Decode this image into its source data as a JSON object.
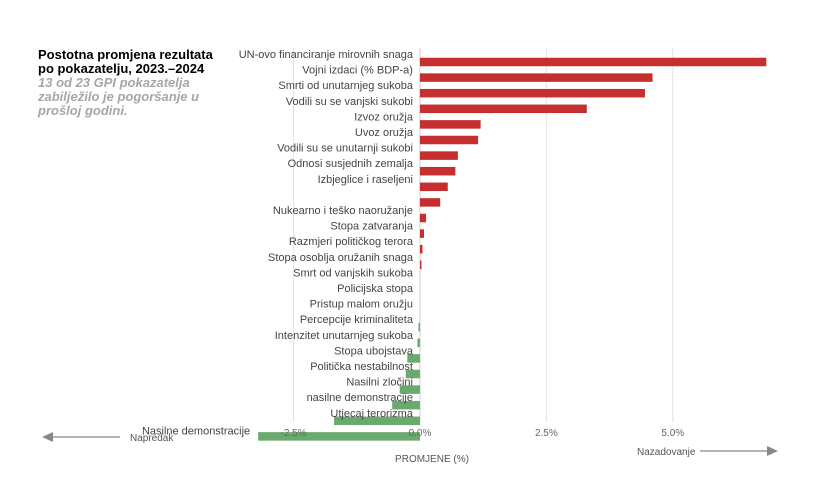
{
  "header": {
    "title": "Postotna promjena rezultata po pokazatelju, 2023.–2024",
    "subtitle": "13 od 23 GPI pokazatelja zabilježilo je pogoršanje u prošloj godini."
  },
  "colors": {
    "worse": "#c62f2f",
    "better": "#6aaa6e",
    "grid": "#e3e3e3",
    "arrow": "#888888"
  },
  "chart_data": {
    "type": "bar",
    "orientation": "horizontal",
    "xlabel": "PROMJENE (%)",
    "xlim": [
      -3.5,
      7.2
    ],
    "xticks": [
      -2.5,
      0,
      2.5,
      5
    ],
    "xtick_labels": [
      "-2.5%",
      "0.0%",
      "2.5%",
      "5.0%"
    ],
    "grid": true,
    "left_arrow_label": "Napredak",
    "right_arrow_label": "Nazadovanje",
    "categories": [
      "UN-ovo financiranje mirovnih snaga",
      "Vojni izdaci (% BDP-a)",
      "Smrti od unutarnjeg sukoba",
      "Vodili su se vanjski sukobi",
      "Izvoz oružja",
      "Uvoz oružja",
      "Vodili su se unutarnji sukobi",
      "Odnosi susjednih zemalja",
      "Izbjeglice i raseljeni",
      "",
      "Nukearno i teško naoružanje",
      "Stopa zatvaranja",
      "Razmjeri političkog terora",
      "Stopa osoblja oružanih snaga",
      "Smrt od vanjskih sukoba",
      "Policijska stopa",
      "Pristup malom oružju",
      "Percepcije kriminaliteta",
      "Intenzitet unutarnjeg sukoba",
      "Stopa ubojstava",
      "Politička nestabilnost",
      "Nasilni zločini",
      "nasilne demonstracije",
      "Utjecaj terorizma",
      "Nasilne demonstracije"
    ],
    "values": [
      6.85,
      4.6,
      4.45,
      3.3,
      1.2,
      1.15,
      0.75,
      0.7,
      0.55,
      0.4,
      0.12,
      0.08,
      0.05,
      0.02,
      0.0,
      0.0,
      0.0,
      -0.03,
      -0.05,
      -0.25,
      -0.28,
      -0.4,
      -0.55,
      -1.7,
      -3.2
    ]
  }
}
